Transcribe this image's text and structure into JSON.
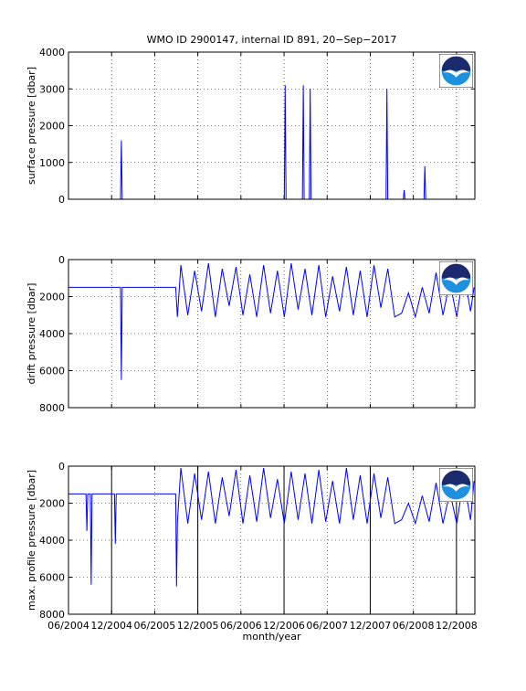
{
  "chart_data": [
    {
      "type": "line",
      "title": "WMO ID 2900147, internal ID 891, 20−Sep−2017",
      "ylabel": "surface pressure [dbar]",
      "x": [
        2004.42,
        2005.02,
        2005.03,
        2005.04,
        2006.92,
        2006.93,
        2006.94,
        2007.13,
        2007.14,
        2007.15,
        2007.21,
        2007.22,
        2007.23,
        2008.1,
        2008.11,
        2008.12,
        2008.3,
        2008.31,
        2008.32,
        2008.54,
        2008.55,
        2008.56,
        2009.12
      ],
      "values": [
        0,
        0,
        1600,
        0,
        0,
        3100,
        0,
        0,
        3100,
        0,
        0,
        3000,
        0,
        0,
        3000,
        0,
        0,
        250,
        0,
        0,
        900,
        0,
        0
      ],
      "color": "#0000ff",
      "xlim": [
        2004.4167,
        2009.13
      ],
      "xticks": [
        2004.4167,
        2004.9167,
        2005.4167,
        2005.9167,
        2006.4167,
        2006.9167,
        2007.4167,
        2007.9167,
        2008.4167,
        2008.9167
      ],
      "ylim": [
        0,
        4000
      ],
      "yticks": [
        0,
        1000,
        2000,
        3000,
        4000
      ],
      "grid": true
    },
    {
      "type": "line",
      "ylabel": "drift pressure [dbar]",
      "x": [
        2004.42,
        2005.02,
        2005.03,
        2005.04,
        2005.66,
        2005.68,
        2005.72,
        2005.8,
        2005.88,
        2005.96,
        2006.04,
        2006.12,
        2006.2,
        2006.28,
        2006.36,
        2006.44,
        2006.52,
        2006.6,
        2006.68,
        2006.76,
        2006.84,
        2006.92,
        2007,
        2007.08,
        2007.16,
        2007.24,
        2007.32,
        2007.4,
        2007.48,
        2007.56,
        2007.64,
        2007.72,
        2007.8,
        2007.88,
        2007.96,
        2008.04,
        2008.12,
        2008.2,
        2008.28,
        2008.36,
        2008.44,
        2008.52,
        2008.6,
        2008.68,
        2008.76,
        2008.84,
        2008.92,
        2009,
        2009.08,
        2009.12
      ],
      "values": [
        1500,
        1500,
        6500,
        1500,
        1500,
        3100,
        300,
        3000,
        600,
        2800,
        200,
        3100,
        500,
        2500,
        400,
        3000,
        800,
        3100,
        300,
        2900,
        600,
        3100,
        200,
        2700,
        500,
        3000,
        300,
        3100,
        900,
        2800,
        400,
        3000,
        600,
        3100,
        300,
        2600,
        500,
        3100,
        2900,
        1800,
        3100,
        1500,
        2900,
        700,
        3000,
        1200,
        3100,
        600,
        2800,
        1500
      ],
      "color": "#0000ff",
      "xlim": [
        2004.4167,
        2009.13
      ],
      "xticks": [
        2004.4167,
        2004.9167,
        2005.4167,
        2005.9167,
        2006.4167,
        2006.9167,
        2007.4167,
        2007.9167,
        2008.4167,
        2008.9167
      ],
      "ylim": [
        8000,
        0
      ],
      "yticks": [
        0,
        2000,
        4000,
        6000,
        8000
      ],
      "grid": true
    },
    {
      "type": "line",
      "ylabel": "max. profile pressure [dbar]",
      "xlabel": "month/year",
      "x": [
        2004.42,
        2004.62,
        2004.63,
        2004.64,
        2004.67,
        2004.68,
        2004.69,
        2004.95,
        2004.96,
        2004.97,
        2005.66,
        2005.67,
        2005.68,
        2005.72,
        2005.8,
        2005.88,
        2005.96,
        2006.04,
        2006.12,
        2006.2,
        2006.28,
        2006.36,
        2006.44,
        2006.52,
        2006.6,
        2006.68,
        2006.76,
        2006.84,
        2006.92,
        2007,
        2007.08,
        2007.16,
        2007.24,
        2007.32,
        2007.4,
        2007.48,
        2007.56,
        2007.64,
        2007.72,
        2007.8,
        2007.88,
        2007.96,
        2008.04,
        2008.12,
        2008.2,
        2008.28,
        2008.36,
        2008.44,
        2008.52,
        2008.6,
        2008.68,
        2008.76,
        2008.84,
        2008.92,
        2009,
        2009.08,
        2009.12
      ],
      "values": [
        1500,
        1500,
        3500,
        1500,
        1500,
        6400,
        1500,
        1500,
        4200,
        1500,
        1500,
        6500,
        3000,
        100,
        3100,
        400,
        2900,
        300,
        3100,
        600,
        2700,
        200,
        3100,
        500,
        3000,
        100,
        2800,
        700,
        3100,
        300,
        2900,
        400,
        3100,
        200,
        3000,
        800,
        3100,
        100,
        2900,
        500,
        3100,
        400,
        2800,
        600,
        3100,
        2900,
        2000,
        3100,
        1600,
        3000,
        900,
        3100,
        1400,
        3100,
        700,
        2900,
        800
      ],
      "color": "#0000ff",
      "vlines": [
        2004.9167,
        2005.9167,
        2006.9167,
        2007.9167,
        2008.9167
      ],
      "vline_color": "#000000",
      "xlim": [
        2004.4167,
        2009.13
      ],
      "xticks": [
        {
          "value": 2004.4167,
          "label": "06/2004"
        },
        {
          "value": 2004.9167,
          "label": "12/2004"
        },
        {
          "value": 2005.4167,
          "label": "06/2005"
        },
        {
          "value": 2005.9167,
          "label": "12/2005"
        },
        {
          "value": 2006.4167,
          "label": "06/2006"
        },
        {
          "value": 2006.9167,
          "label": "12/2006"
        },
        {
          "value": 2007.4167,
          "label": "06/2007"
        },
        {
          "value": 2007.9167,
          "label": "12/2007"
        },
        {
          "value": 2008.4167,
          "label": "06/2008"
        },
        {
          "value": 2008.9167,
          "label": "12/2008"
        }
      ],
      "ylim": [
        8000,
        0
      ],
      "yticks": [
        0,
        2000,
        4000,
        6000,
        8000
      ],
      "grid": true
    }
  ]
}
